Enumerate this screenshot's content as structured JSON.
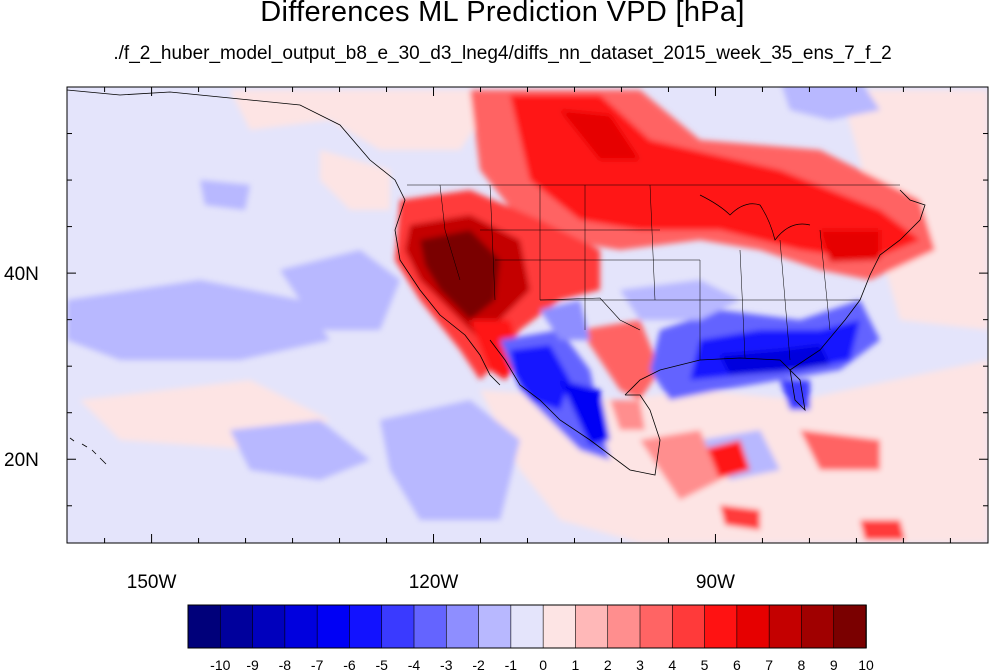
{
  "title": "Differences ML Prediction VPD [hPa]",
  "subtitle": "./f_2_huber_model_output_b8_e_30_d3_lneg4/diffs_nn_dataset_2015_week_35_ens_7_f_2",
  "lon_ticks": [
    {
      "value": -150,
      "label": "150W"
    },
    {
      "value": -120,
      "label": "120W"
    },
    {
      "value": -90,
      "label": "90W"
    }
  ],
  "lat_ticks": [
    {
      "value": 40,
      "label": "40N"
    },
    {
      "value": 20,
      "label": "20N"
    }
  ],
  "extent": {
    "lon_min": -159,
    "lon_max": -61,
    "lat_min": 11,
    "lat_max": 60
  },
  "colorbar": {
    "labels": [
      "-10",
      "-9",
      "-8",
      "-7",
      "-6",
      "-5",
      "-4",
      "-3",
      "-2",
      "-1",
      "0",
      "1",
      "2",
      "3",
      "4",
      "5",
      "6",
      "7",
      "8",
      "9",
      "10"
    ],
    "colors": [
      "#00007a",
      "#00009c",
      "#0000bd",
      "#0000de",
      "#0000f5",
      "#1212ff",
      "#3a3aff",
      "#6464ff",
      "#8e8eff",
      "#b8b8ff",
      "#e4e4fb",
      "#fde4e4",
      "#ffb8b8",
      "#ff8e8e",
      "#ff6464",
      "#ff3a3a",
      "#ff1212",
      "#e60000",
      "#c40000",
      "#a00000",
      "#7a0000"
    ]
  },
  "palette": {
    "neutral": "#e4e4fb",
    "light_pink": "#fde4e4",
    "dark_red": "#7a0000",
    "light_blue": "#b8b8ff",
    "mid_blue": "#6464ff",
    "deep_blue": "#0000de"
  }
}
